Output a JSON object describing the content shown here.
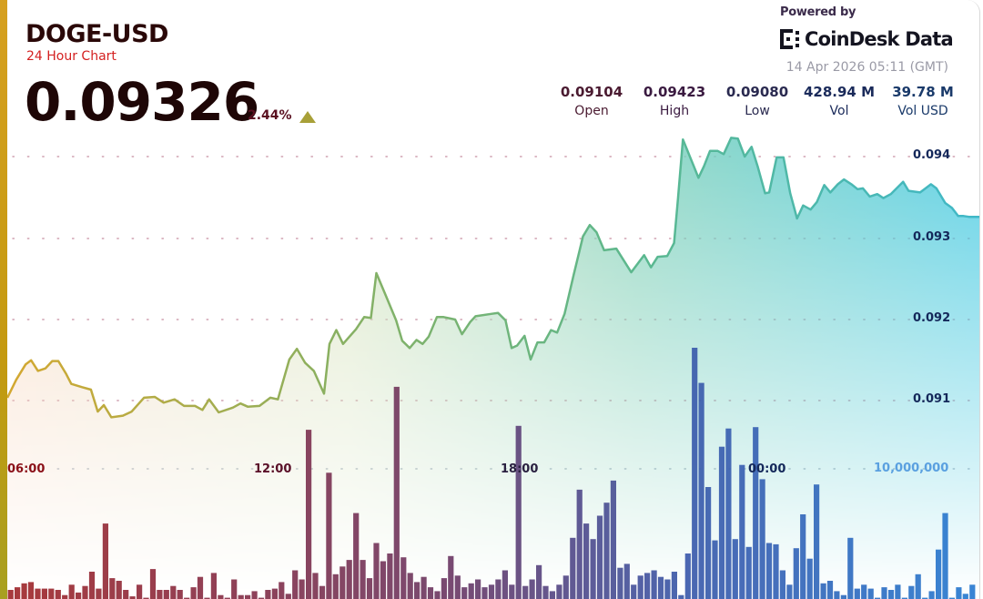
{
  "header": {
    "symbol": "DOGE-USD",
    "subtitle": "24 Hour Chart",
    "price": "0.09326",
    "change_pct": "2.44%",
    "change_direction": "up",
    "change_icon": "triangle-up-icon"
  },
  "branding": {
    "powered_by": "Powered by",
    "logo_text": "CoinDesk Data",
    "timestamp": "14 Apr 2026 05:11 (GMT)"
  },
  "stats": [
    {
      "label": "Open",
      "value": "0.09104"
    },
    {
      "label": "High",
      "value": "0.09423"
    },
    {
      "label": "Low",
      "value": "0.09080"
    },
    {
      "label": "Vol",
      "value": "428.94 M"
    },
    {
      "label": "Vol USD",
      "value": "39.78 M"
    }
  ],
  "colors": {
    "accent_left": "#c49a10",
    "up": "#a8a038",
    "title": "#2a0808",
    "subtitle": "#d42020",
    "bars_start": "#a0282c",
    "bars_end": "#2a7ad0",
    "line_start": "#d4a830",
    "line_end": "#40b8c8"
  },
  "chart_data": {
    "type": "area",
    "title": "",
    "xlabel": "",
    "ylabel": "",
    "x_ticks": [
      "06:00",
      "12:00",
      "18:00",
      "00:00"
    ],
    "y_ticks": [
      "0.094",
      "0.093",
      "0.092",
      "0.091"
    ],
    "ylim": [
      0.0906,
      0.0942
    ],
    "volume_tick": "10,000,000",
    "grid": "dotted horizontal",
    "price_series": [
      [
        "05:36",
        0.09104
      ],
      [
        "05:49",
        0.09126
      ],
      [
        "06:03",
        0.09145
      ],
      [
        "06:11",
        0.0915
      ],
      [
        "06:21",
        0.09137
      ],
      [
        "06:32",
        0.0914
      ],
      [
        "06:42",
        0.09149
      ],
      [
        "06:51",
        0.09149
      ],
      [
        "07:02",
        0.09134
      ],
      [
        "07:10",
        0.09121
      ],
      [
        "07:26",
        0.09117
      ],
      [
        "07:39",
        0.09114
      ],
      [
        "07:49",
        0.09087
      ],
      [
        "07:58",
        0.09095
      ],
      [
        "08:09",
        0.0908
      ],
      [
        "08:26",
        0.09082
      ],
      [
        "08:39",
        0.09087
      ],
      [
        "08:57",
        0.09104
      ],
      [
        "09:13",
        0.09105
      ],
      [
        "09:26",
        0.09098
      ],
      [
        "09:42",
        0.09102
      ],
      [
        "09:56",
        0.09094
      ],
      [
        "10:12",
        0.09094
      ],
      [
        "10:23",
        0.09089
      ],
      [
        "10:33",
        0.09102
      ],
      [
        "10:47",
        0.09086
      ],
      [
        "11:08",
        0.09092
      ],
      [
        "11:19",
        0.09097
      ],
      [
        "11:30",
        0.09093
      ],
      [
        "11:47",
        0.09094
      ],
      [
        "12:03",
        0.09104
      ],
      [
        "12:14",
        0.09102
      ],
      [
        "12:31",
        0.09151
      ],
      [
        "12:42",
        0.09164
      ],
      [
        "12:54",
        0.09147
      ],
      [
        "13:07",
        0.09137
      ],
      [
        "13:22",
        0.09109
      ],
      [
        "13:30",
        0.0917
      ],
      [
        "13:40",
        0.09187
      ],
      [
        "13:50",
        0.0917
      ],
      [
        "14:09",
        0.09188
      ],
      [
        "14:21",
        0.09203
      ],
      [
        "14:31",
        0.09202
      ],
      [
        "14:39",
        0.09257
      ],
      [
        "14:53",
        0.09229
      ],
      [
        "15:08",
        0.09199
      ],
      [
        "15:17",
        0.09174
      ],
      [
        "15:28",
        0.09165
      ],
      [
        "15:38",
        0.09175
      ],
      [
        "15:47",
        0.0917
      ],
      [
        "15:56",
        0.09179
      ],
      [
        "16:08",
        0.09203
      ],
      [
        "16:18",
        0.09203
      ],
      [
        "16:35",
        0.092
      ],
      [
        "16:45",
        0.09182
      ],
      [
        "16:57",
        0.09197
      ],
      [
        "17:05",
        0.09204
      ],
      [
        "17:29",
        0.09207
      ],
      [
        "17:38",
        0.09208
      ],
      [
        "17:49",
        0.09199
      ],
      [
        "17:58",
        0.09165
      ],
      [
        "18:06",
        0.09168
      ],
      [
        "18:17",
        0.0918
      ],
      [
        "18:26",
        0.09151
      ],
      [
        "18:36",
        0.09172
      ],
      [
        "18:46",
        0.09172
      ],
      [
        "18:56",
        0.09187
      ],
      [
        "19:05",
        0.09184
      ],
      [
        "19:16",
        0.09207
      ],
      [
        "19:29",
        0.09254
      ],
      [
        "19:43",
        0.09302
      ],
      [
        "19:53",
        0.09316
      ],
      [
        "20:03",
        0.09307
      ],
      [
        "20:14",
        0.09285
      ],
      [
        "20:32",
        0.09287
      ],
      [
        "20:54",
        0.09258
      ],
      [
        "21:13",
        0.09279
      ],
      [
        "21:23",
        0.09264
      ],
      [
        "21:33",
        0.09277
      ],
      [
        "21:47",
        0.09278
      ],
      [
        "21:57",
        0.09294
      ],
      [
        "22:03",
        0.0935
      ],
      [
        "22:10",
        0.09421
      ],
      [
        "22:33",
        0.09374
      ],
      [
        "22:41",
        0.09388
      ],
      [
        "22:50",
        0.09407
      ],
      [
        "23:01",
        0.09407
      ],
      [
        "23:10",
        0.09403
      ],
      [
        "23:21",
        0.09423
      ],
      [
        "23:31",
        0.09422
      ],
      [
        "23:41",
        0.094
      ],
      [
        "23:51",
        0.09412
      ],
      [
        "00:00",
        0.09388
      ],
      [
        "00:11",
        0.09355
      ],
      [
        "00:17",
        0.09356
      ],
      [
        "00:28",
        0.09399
      ],
      [
        "00:38",
        0.09399
      ],
      [
        "00:48",
        0.09355
      ],
      [
        "00:58",
        0.09324
      ],
      [
        "01:07",
        0.0934
      ],
      [
        "01:18",
        0.09335
      ],
      [
        "01:27",
        0.09344
      ],
      [
        "01:38",
        0.09365
      ],
      [
        "01:47",
        0.09356
      ],
      [
        "01:58",
        0.09366
      ],
      [
        "02:07",
        0.09372
      ],
      [
        "02:18",
        0.09366
      ],
      [
        "02:27",
        0.0936
      ],
      [
        "02:35",
        0.09361
      ],
      [
        "02:45",
        0.09351
      ],
      [
        "02:56",
        0.09354
      ],
      [
        "03:05",
        0.09349
      ],
      [
        "03:16",
        0.09354
      ],
      [
        "03:34",
        0.09369
      ],
      [
        "03:42",
        0.09358
      ],
      [
        "03:59",
        0.09356
      ],
      [
        "04:15",
        0.09366
      ],
      [
        "04:23",
        0.09361
      ],
      [
        "04:36",
        0.09343
      ],
      [
        "04:46",
        0.09337
      ],
      [
        "04:55",
        0.09327
      ],
      [
        "05:03",
        0.09327
      ],
      [
        "05:11",
        0.09326
      ]
    ],
    "volume_millions": [
      0.7,
      0.9,
      1.2,
      1.3,
      0.8,
      0.8,
      0.8,
      0.7,
      0.3,
      1.1,
      0.5,
      1.0,
      2.1,
      0.8,
      5.8,
      1.6,
      1.4,
      0.7,
      0.2,
      1.1,
      0.1,
      2.3,
      0.7,
      0.7,
      1.0,
      0.7,
      0.1,
      0.9,
      1.7,
      0.1,
      2.0,
      0.3,
      0.1,
      1.5,
      0.3,
      0.3,
      0.6,
      0.1,
      0.7,
      0.8,
      1.3,
      0.4,
      2.2,
      1.5,
      13.0,
      2.0,
      1.0,
      9.7,
      1.9,
      2.5,
      3.0,
      6.6,
      3.0,
      1.6,
      4.3,
      2.9,
      3.5,
      16.3,
      3.2,
      2.0,
      1.3,
      1.7,
      0.9,
      0.6,
      1.6,
      3.3,
      1.8,
      0.9,
      1.2,
      1.5,
      0.9,
      1.1,
      1.5,
      2.2,
      1.1,
      13.3,
      1.0,
      1.5,
      2.6,
      1.0,
      0.6,
      1.1,
      1.8,
      4.7,
      8.4,
      5.8,
      4.6,
      6.4,
      7.4,
      9.1,
      2.4,
      2.7,
      1.1,
      1.8,
      2.0,
      2.2,
      1.7,
      1.5,
      2.1,
      0.3,
      3.5,
      19.3,
      16.6,
      8.6,
      4.5,
      11.7,
      13.1,
      4.6,
      10.3,
      4.0,
      13.2,
      9.2,
      4.3,
      4.2,
      2.2,
      1.1,
      3.9,
      6.5,
      3.1,
      8.8,
      1.2,
      1.4,
      0.6,
      0.3,
      4.7,
      0.8,
      1.1,
      0.8,
      0.1,
      0.9,
      0.7,
      1.1,
      0.1,
      1.0,
      1.9,
      0.1,
      0.6,
      3.8,
      6.6,
      0.1,
      0.9,
      0.4,
      1.1
    ]
  }
}
